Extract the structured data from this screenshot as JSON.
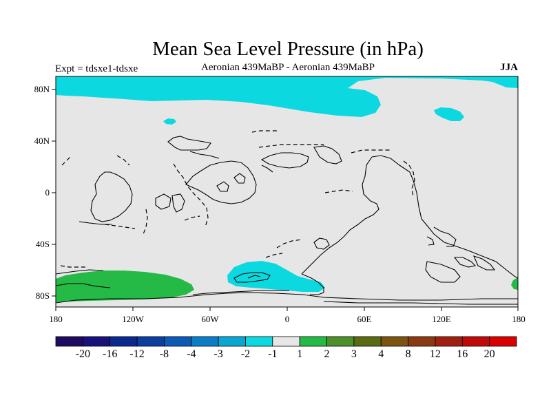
{
  "title": "Mean Sea Level Pressure (in hPa)",
  "left_subtitle": "Expt = tdsxe1-tdsxe",
  "center_subtitle": "Aeronian 439MaBP - Aeronian 439MaBP",
  "right_subtitle": "JJA",
  "lat_labels": [
    "80N",
    "40N",
    "0",
    "40S",
    "80S"
  ],
  "lon_labels": [
    "180",
    "120W",
    "60W",
    "0",
    "60E",
    "120E",
    "180"
  ],
  "colorbar": {
    "labels": [
      "-20",
      "-16",
      "-12",
      "-8",
      "-4",
      "-3",
      "-2",
      "-1",
      "1",
      "2",
      "3",
      "4",
      "8",
      "12",
      "16",
      "20"
    ],
    "colors": [
      "#1e0b60",
      "#17127a",
      "#0a2b8c",
      "#0a3fa0",
      "#0d5ab5",
      "#0c7ec6",
      "#0aa6d2",
      "#0cd9df",
      "#e6e6e6",
      "#25b946",
      "#4d8f2a",
      "#5a6b14",
      "#7a5410",
      "#8a3a10",
      "#9f200e",
      "#c00a0a",
      "#d90000"
    ]
  },
  "colors": {
    "background_field": "#e6e6e6",
    "negative_anomaly": "#0cd9df",
    "positive_anomaly": "#25b946"
  }
}
